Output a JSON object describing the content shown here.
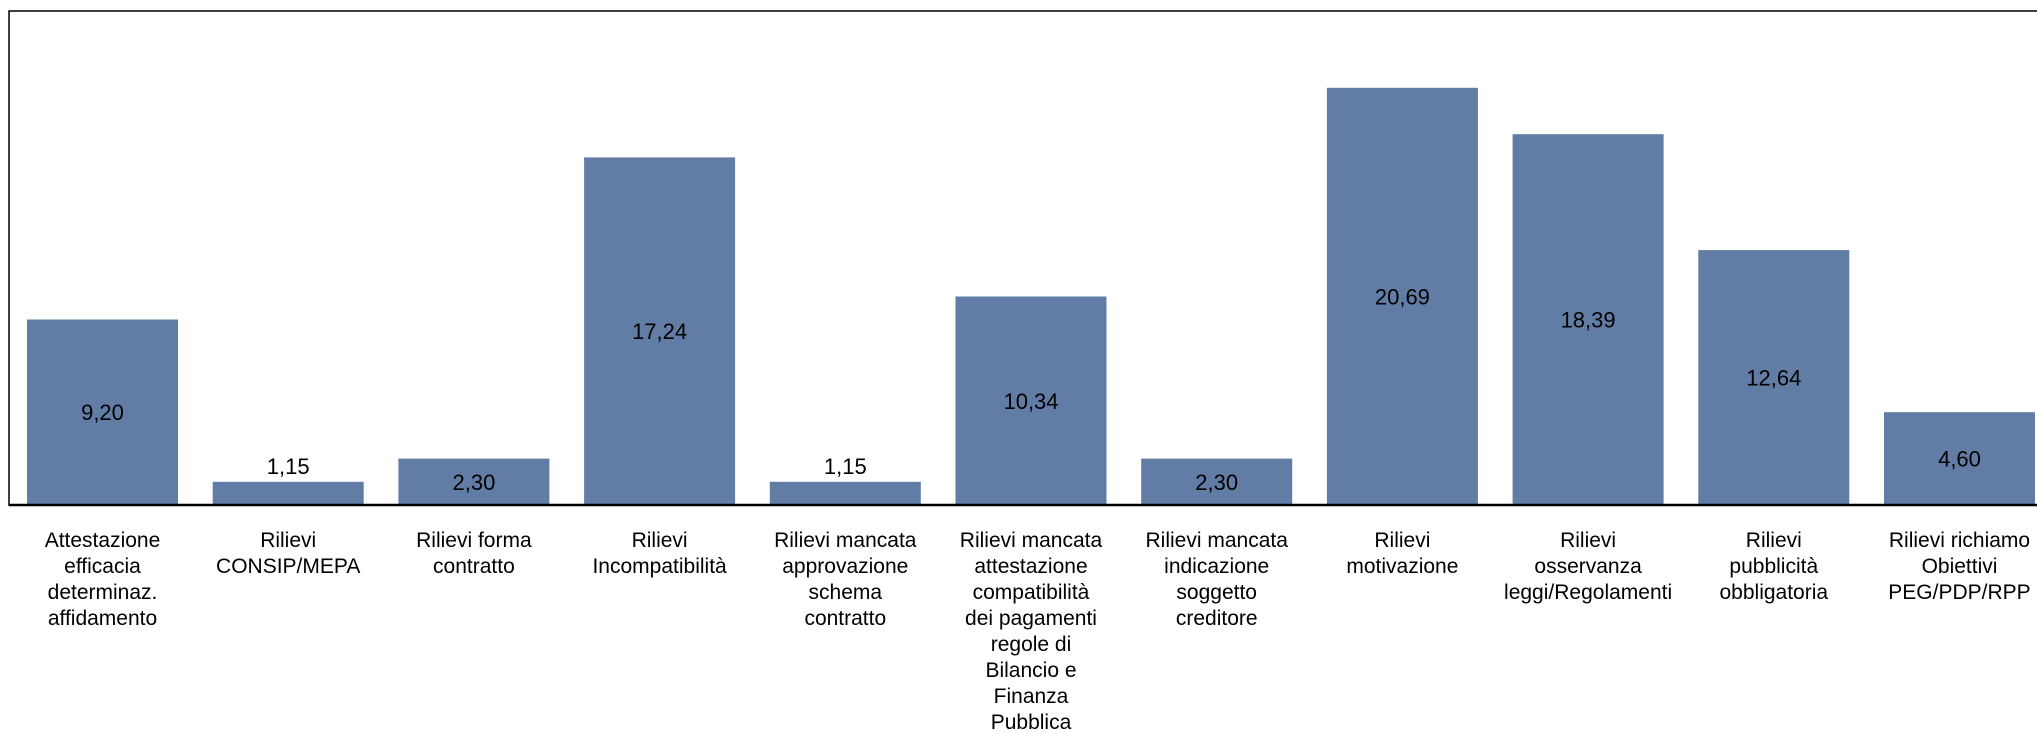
{
  "chart_data": {
    "type": "bar",
    "categories": [
      [
        "Attestazione",
        "efficacia",
        "determinaz.",
        "affidamento"
      ],
      [
        "Rilievi",
        "CONSIP/MEPA"
      ],
      [
        "Rilievi forma",
        "contratto"
      ],
      [
        "Rilievi",
        "Incompatibilità"
      ],
      [
        "Rilievi mancata",
        "approvazione",
        "schema",
        "contratto"
      ],
      [
        "Rilievi mancata",
        "attestazione",
        "compatibilità",
        "dei pagamenti",
        "regole di",
        "Bilancio e",
        "Finanza",
        "Pubblica"
      ],
      [
        "Rilievi mancata",
        "indicazione",
        "soggetto",
        "creditore"
      ],
      [
        "Rilievi",
        "motivazione"
      ],
      [
        "Rilievi",
        "osservanza",
        "leggi/Regolamenti"
      ],
      [
        "Rilievi",
        "pubblicità",
        "obbligatoria"
      ],
      [
        "Rilievi richiamo",
        "Obiettivi",
        "PEG/PDP/RPP"
      ]
    ],
    "values": [
      9.2,
      1.15,
      2.3,
      17.24,
      1.15,
      10.34,
      2.3,
      20.69,
      18.39,
      12.64,
      4.6
    ],
    "value_labels": [
      "9,20",
      "1,15",
      "2,30",
      "17,24",
      "1,15",
      "10,34",
      "2,30",
      "20,69",
      "18,39",
      "12,64",
      "4,60"
    ],
    "ylim": [
      0,
      24.5
    ],
    "grid": false,
    "legend": "none",
    "bar_color": "#627da5",
    "title": "",
    "xlabel": "",
    "ylabel": ""
  }
}
